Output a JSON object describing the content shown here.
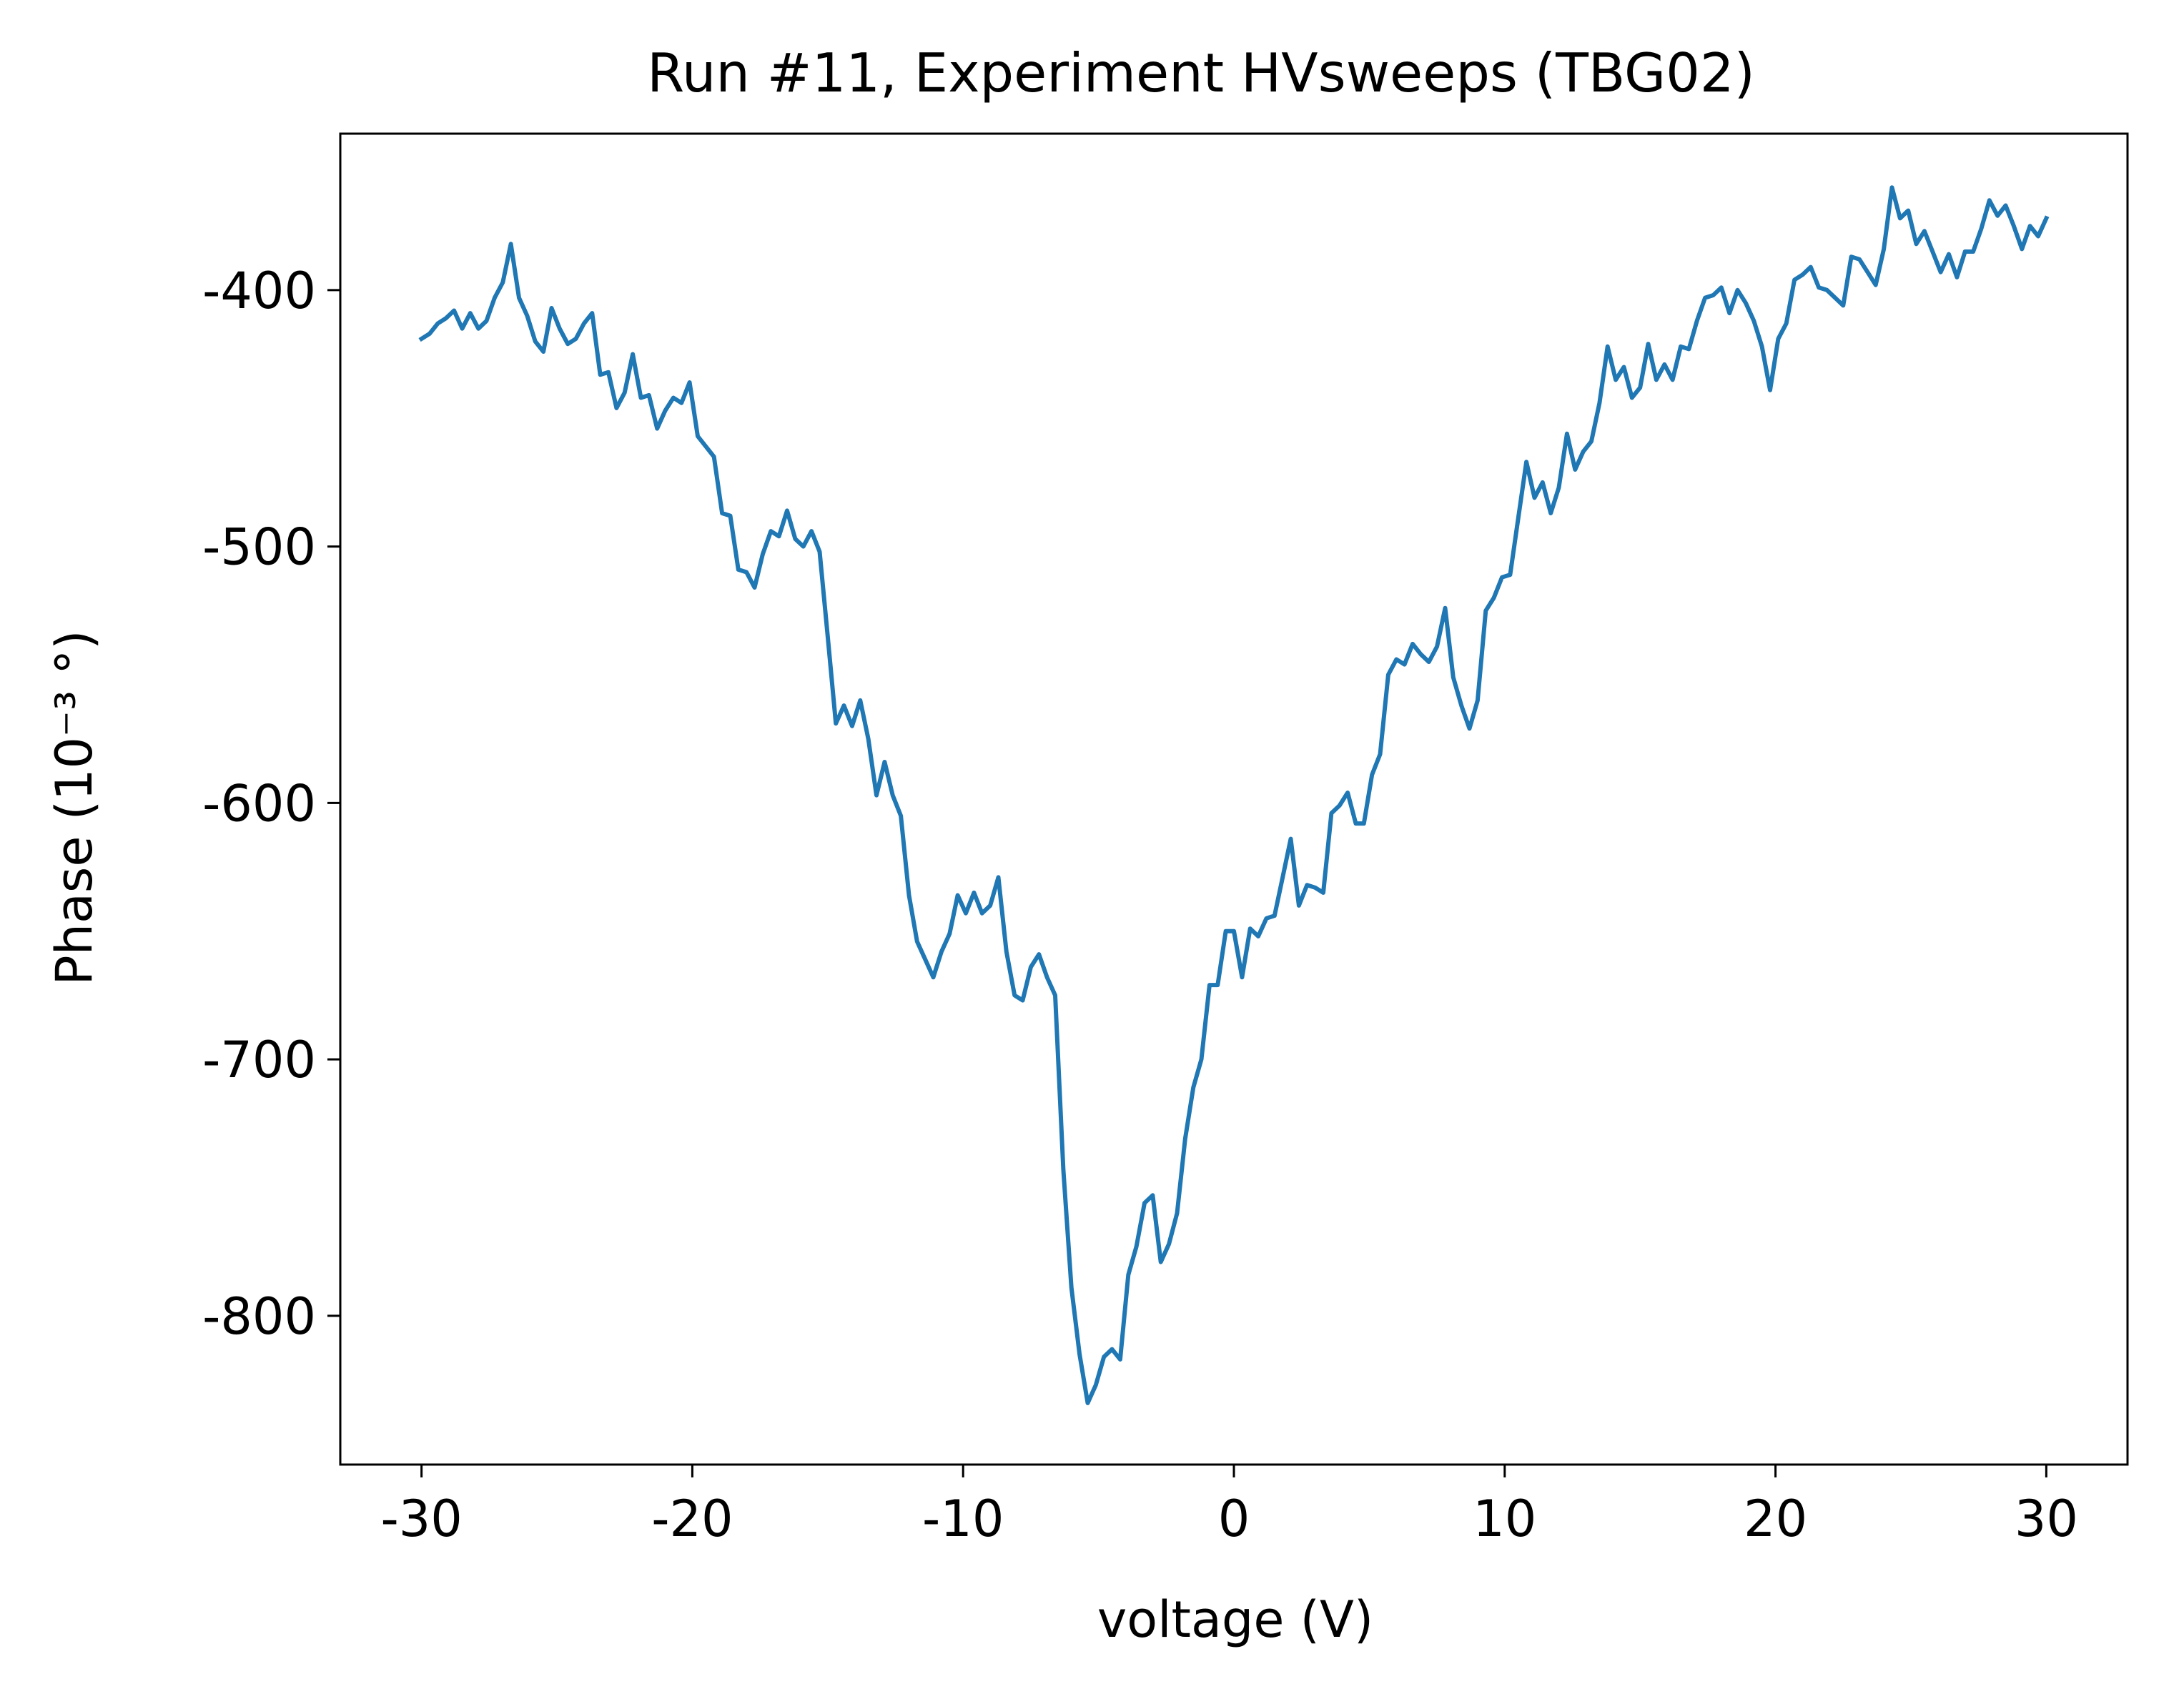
{
  "chart_data": {
    "type": "line",
    "title": "Run #11, Experiment HVsweeps (TBG02)",
    "xlabel": "voltage (V)",
    "ylabel": "Phase (10⁻³ °)",
    "xlim": [
      -33,
      33
    ],
    "ylim": [
      -858,
      -339
    ],
    "xticks": [
      -30,
      -20,
      -10,
      0,
      10,
      20,
      30
    ],
    "xtick_labels": [
      "-30",
      "-20",
      "-10",
      "0",
      "10",
      "20",
      "30"
    ],
    "yticks": [
      -400,
      -500,
      -600,
      -700,
      -800
    ],
    "ytick_labels": [
      "-400",
      "-500",
      "-600",
      "-700",
      "-800"
    ],
    "grid": false,
    "line_color": "#1f77b4",
    "series": [
      {
        "x": [
          -30,
          -29.7,
          -29.4,
          -29.1,
          -28.8,
          -28.5,
          -28.2,
          -27.9,
          -27.6,
          -27.3,
          -27,
          -26.7,
          -26.4,
          -26.1,
          -25.8,
          -25.5,
          -25.2,
          -24.9,
          -24.6,
          -24.3,
          -24,
          -23.7,
          -23.4,
          -23.1,
          -22.8,
          -22.5,
          -22.2,
          -21.9,
          -21.6,
          -21.3,
          -21,
          -20.7,
          -20.4,
          -20.1,
          -19.8,
          -19.5,
          -19.2,
          -18.9,
          -18.6,
          -18.3,
          -18,
          -17.7,
          -17.4,
          -17.1,
          -16.8,
          -16.5,
          -16.2,
          -15.9,
          -15.6,
          -15.3,
          -15,
          -14.7,
          -14.4,
          -14.1,
          -13.8,
          -13.5,
          -13.2,
          -12.9,
          -12.6,
          -12.3,
          -12,
          -11.7,
          -11.4,
          -11.1,
          -10.8,
          -10.5,
          -10.2,
          -9.9,
          -9.6,
          -9.3,
          -9,
          -8.7,
          -8.4,
          -8.1,
          -7.8,
          -7.5,
          -7.2,
          -6.9,
          -6.6,
          -6.3,
          -6,
          -5.7,
          -5.4,
          -5.1,
          -4.8,
          -4.5,
          -4.2,
          -3.9,
          -3.6,
          -3.3,
          -3,
          -2.7,
          -2.4,
          -2.1,
          -1.8,
          -1.5,
          -1.2,
          -0.9,
          -0.6,
          -0.3,
          0,
          0.3,
          0.6,
          0.9,
          1.2,
          1.5,
          1.8,
          2.1,
          2.4,
          2.7,
          3,
          3.3,
          3.6,
          3.9,
          4.2,
          4.5,
          4.8,
          5.1,
          5.4,
          5.7,
          6,
          6.3,
          6.6,
          6.9,
          7.2,
          7.5,
          7.8,
          8.1,
          8.4,
          8.7,
          9,
          9.3,
          9.6,
          9.9,
          10.2,
          10.5,
          10.8,
          11.1,
          11.4,
          11.7,
          12,
          12.3,
          12.6,
          12.9,
          13.2,
          13.5,
          13.8,
          14.1,
          14.4,
          14.7,
          15,
          15.3,
          15.6,
          15.9,
          16.2,
          16.5,
          16.8,
          17.1,
          17.4,
          17.7,
          18,
          18.3,
          18.6,
          18.9,
          19.2,
          19.5,
          19.8,
          20.1,
          20.4,
          20.7,
          21,
          21.3,
          21.6,
          21.9,
          22.2,
          22.5,
          22.8,
          23.1,
          23.4,
          23.7,
          24,
          24.3,
          24.6,
          24.9,
          25.2,
          25.5,
          25.8,
          26.1,
          26.4,
          26.7,
          27,
          27.3,
          27.6,
          27.9,
          28.2,
          28.5,
          28.8,
          29.1,
          29.4,
          29.7,
          30
        ],
        "y": [
          -419,
          -417,
          -413,
          -411,
          -408,
          -415,
          -409,
          -415,
          -412,
          -403,
          -397,
          -382,
          -403,
          -410,
          -420,
          -424,
          -407,
          -415,
          -421,
          -419,
          -413,
          -409,
          -433,
          -432,
          -446,
          -440,
          -425,
          -442,
          -441,
          -454,
          -447,
          -442,
          -444,
          -436,
          -457,
          -461,
          -465,
          -487,
          -488,
          -509,
          -510,
          -516,
          -503,
          -494,
          -496,
          -486,
          -497,
          -500,
          -494,
          -502,
          -535,
          -569,
          -562,
          -570,
          -560,
          -575,
          -597,
          -584,
          -597,
          -605,
          -636,
          -654,
          -661,
          -668,
          -658,
          -651,
          -636,
          -643,
          -635,
          -643,
          -640,
          -629,
          -658,
          -675,
          -677,
          -664,
          -659,
          -668,
          -675,
          -743,
          -789,
          -815,
          -834,
          -827,
          -816,
          -813,
          -817,
          -784,
          -773,
          -756,
          -753,
          -779,
          -772,
          -760,
          -731,
          -711,
          -700,
          -671,
          -671,
          -650,
          -650,
          -668,
          -649,
          -652,
          -645,
          -644,
          -629,
          -614,
          -640,
          -632,
          -633,
          -635,
          -604,
          -601,
          -596,
          -608,
          -608,
          -589,
          -581,
          -550,
          -544,
          -546,
          -538,
          -542,
          -545,
          -539,
          -524,
          -551,
          -562,
          -571,
          -560,
          -525,
          -520,
          -512,
          -511,
          -489,
          -467,
          -481,
          -475,
          -487,
          -477,
          -456,
          -470,
          -463,
          -459,
          -444,
          -422,
          -435,
          -430,
          -442,
          -438,
          -421,
          -435,
          -429,
          -435,
          -422,
          -423,
          -412,
          -403,
          -402,
          -399,
          -409,
          -400,
          -405,
          -412,
          -422,
          -439,
          -419,
          -413,
          -396,
          -394,
          -391,
          -399,
          -400,
          -403,
          -406,
          -387,
          -388,
          -393,
          -398,
          -384,
          -360,
          -372,
          -369,
          -382,
          -377,
          -385,
          -393,
          -386,
          -395,
          -385,
          -385,
          -376,
          -365,
          -371,
          -367,
          -375,
          -384,
          -375,
          -379,
          -372
        ]
      }
    ]
  }
}
